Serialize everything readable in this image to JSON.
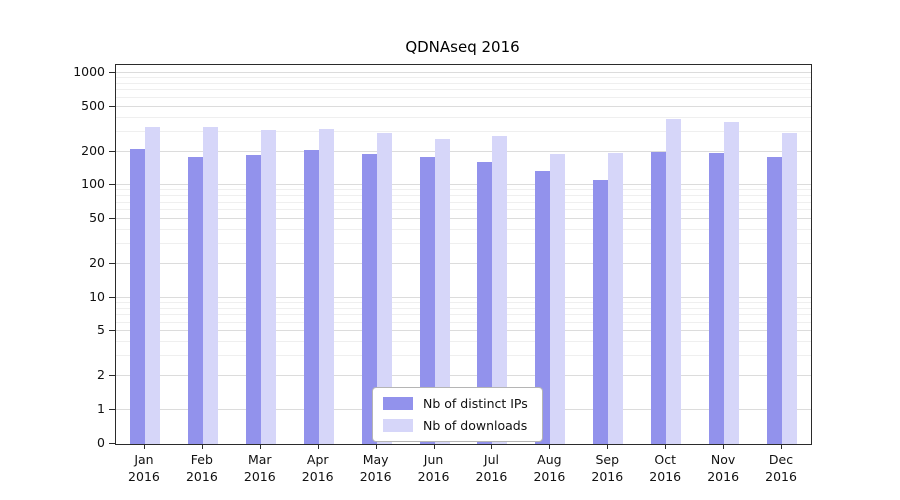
{
  "chart_data": {
    "type": "bar",
    "title": "QDNAseq 2016",
    "scale": "log",
    "months": [
      "Jan",
      "Feb",
      "Mar",
      "Apr",
      "May",
      "Jun",
      "Jul",
      "Aug",
      "Sep",
      "Oct",
      "Nov",
      "Dec"
    ],
    "year_label": "2016",
    "yticks": [
      0,
      1,
      2,
      5,
      10,
      20,
      50,
      100,
      200,
      500,
      1000
    ],
    "ylim": [
      0,
      1000
    ],
    "grid": "on",
    "legend_position": "bottom-center",
    "series": [
      {
        "name": "Nb of distinct IPs",
        "color": "#9292ec",
        "values": [
          210,
          180,
          185,
          205,
          190,
          180,
          160,
          135,
          112,
          200,
          195,
          180
        ]
      },
      {
        "name": "Nb of downloads",
        "color": "#d6d6f9",
        "values": [
          330,
          330,
          310,
          315,
          290,
          260,
          275,
          190,
          195,
          390,
          370,
          290
        ]
      }
    ]
  }
}
